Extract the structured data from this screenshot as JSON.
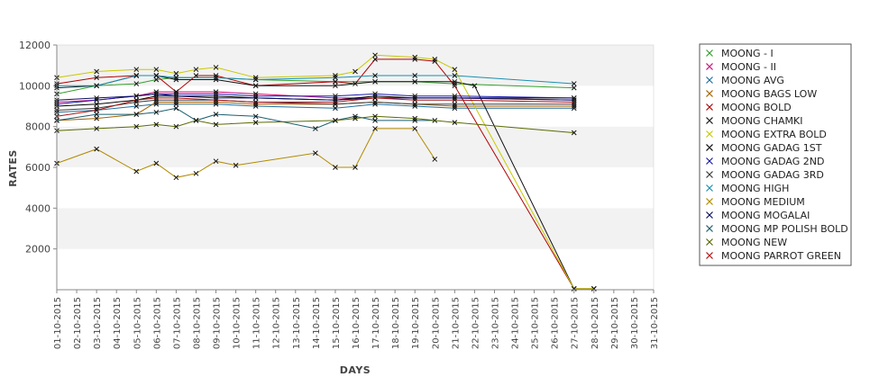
{
  "chart_data": {
    "type": "line",
    "title": "",
    "xlabel": "DAYS",
    "ylabel": "RATES",
    "ylim": [
      0,
      12000
    ],
    "yticks": [
      2000,
      4000,
      6000,
      8000,
      10000,
      12000
    ],
    "grid": true,
    "legend_position": "right",
    "categories": [
      "01-10-2015",
      "02-10-2015",
      "03-10-2015",
      "04-10-2015",
      "05-10-2015",
      "06-10-2015",
      "07-10-2015",
      "08-10-2015",
      "09-10-2015",
      "10-10-2015",
      "11-10-2015",
      "12-10-2015",
      "13-10-2015",
      "14-10-2015",
      "15-10-2015",
      "16-10-2015",
      "17-10-2015",
      "18-10-2015",
      "19-10-2015",
      "20-10-2015",
      "21-10-2015",
      "22-10-2015",
      "23-10-2015",
      "24-10-2015",
      "25-10-2015",
      "26-10-2015",
      "27-10-2015",
      "28-10-2015",
      "29-10-2015",
      "30-10-2015",
      "31-10-2015"
    ],
    "series": [
      {
        "name": "MOONG - I",
        "color": "#33a02c",
        "points": [
          [
            0,
            9600
          ],
          [
            2,
            10000
          ],
          [
            4,
            10100
          ],
          [
            5,
            10300
          ],
          [
            6,
            10400
          ],
          [
            8,
            10400
          ],
          [
            10,
            10300
          ],
          [
            14,
            10200
          ],
          [
            16,
            10200
          ],
          [
            18,
            10200
          ],
          [
            20,
            10100
          ],
          [
            26,
            9900
          ]
        ]
      },
      {
        "name": "MOONG - II",
        "color": "#cc0077",
        "points": [
          [
            0,
            9200
          ],
          [
            2,
            9300
          ],
          [
            4,
            9500
          ],
          [
            5,
            9700
          ],
          [
            6,
            9700
          ],
          [
            8,
            9700
          ],
          [
            10,
            9600
          ],
          [
            14,
            9400
          ],
          [
            16,
            9400
          ],
          [
            18,
            9400
          ],
          [
            20,
            9400
          ],
          [
            26,
            9300
          ]
        ]
      },
      {
        "name": "MOONG AVG",
        "color": "#1f6fa0",
        "points": [
          [
            0,
            8700
          ],
          [
            2,
            8800
          ],
          [
            4,
            9000
          ],
          [
            5,
            9100
          ],
          [
            6,
            9100
          ],
          [
            8,
            9100
          ],
          [
            10,
            9000
          ],
          [
            14,
            8900
          ],
          [
            16,
            9100
          ],
          [
            18,
            9000
          ],
          [
            20,
            8900
          ],
          [
            26,
            8900
          ]
        ]
      },
      {
        "name": "MOONG BAGS LOW",
        "color": "#a06000",
        "points": [
          [
            0,
            8300
          ],
          [
            2,
            8400
          ],
          [
            4,
            8600
          ],
          [
            5,
            9200
          ],
          [
            6,
            9200
          ],
          [
            8,
            9200
          ],
          [
            10,
            9100
          ],
          [
            14,
            9100
          ],
          [
            16,
            9200
          ],
          [
            18,
            9100
          ],
          [
            20,
            9000
          ],
          [
            26,
            9000
          ]
        ]
      },
      {
        "name": "MOONG BOLD",
        "color": "#b00000",
        "points": [
          [
            0,
            10100
          ],
          [
            2,
            10400
          ],
          [
            4,
            10500
          ],
          [
            5,
            10500
          ],
          [
            6,
            9700
          ],
          [
            7,
            10500
          ],
          [
            8,
            10500
          ],
          [
            10,
            10000
          ],
          [
            14,
            10200
          ],
          [
            15,
            10100
          ],
          [
            16,
            11300
          ],
          [
            18,
            11300
          ],
          [
            19,
            11200
          ],
          [
            20,
            10000
          ],
          [
            26,
            50
          ],
          [
            27,
            50
          ]
        ]
      },
      {
        "name": "MOONG CHAMKI",
        "color": "#111111",
        "points": [
          [
            0,
            9900
          ],
          [
            2,
            10000
          ],
          [
            4,
            10500
          ],
          [
            5,
            10500
          ],
          [
            6,
            10300
          ],
          [
            8,
            10300
          ],
          [
            10,
            10000
          ],
          [
            14,
            10000
          ],
          [
            16,
            10200
          ],
          [
            18,
            10200
          ],
          [
            20,
            10200
          ],
          [
            21,
            10000
          ],
          [
            26,
            50
          ],
          [
            27,
            50
          ]
        ]
      },
      {
        "name": "MOONG EXTRA BOLD",
        "color": "#c8c800",
        "points": [
          [
            0,
            10400
          ],
          [
            2,
            10700
          ],
          [
            4,
            10800
          ],
          [
            5,
            10800
          ],
          [
            6,
            10600
          ],
          [
            7,
            10800
          ],
          [
            8,
            10900
          ],
          [
            10,
            10400
          ],
          [
            14,
            10500
          ],
          [
            15,
            10700
          ],
          [
            16,
            11500
          ],
          [
            18,
            11400
          ],
          [
            19,
            11300
          ],
          [
            20,
            10800
          ],
          [
            26,
            50
          ],
          [
            27,
            50
          ]
        ]
      },
      {
        "name": "MOONG GADAG 1ST",
        "color": "#000000",
        "points": [
          [
            0,
            9000
          ],
          [
            2,
            9100
          ],
          [
            4,
            9300
          ],
          [
            5,
            9500
          ],
          [
            6,
            9500
          ],
          [
            8,
            9500
          ],
          [
            10,
            9400
          ],
          [
            14,
            9300
          ],
          [
            16,
            9500
          ],
          [
            18,
            9400
          ],
          [
            20,
            9400
          ],
          [
            26,
            9400
          ]
        ]
      },
      {
        "name": "MOONG GADAG 2ND",
        "color": "#1a1aaa",
        "points": [
          [
            0,
            9100
          ],
          [
            2,
            9300
          ],
          [
            4,
            9500
          ],
          [
            5,
            9600
          ],
          [
            6,
            9600
          ],
          [
            8,
            9600
          ],
          [
            10,
            9500
          ],
          [
            14,
            9500
          ],
          [
            16,
            9600
          ],
          [
            18,
            9500
          ],
          [
            20,
            9500
          ],
          [
            26,
            9400
          ]
        ]
      },
      {
        "name": "MOONG GADAG 3RD",
        "color": "#3a3a3a",
        "points": [
          [
            0,
            8800
          ],
          [
            2,
            8900
          ],
          [
            4,
            9200
          ],
          [
            5,
            9300
          ],
          [
            6,
            9300
          ],
          [
            8,
            9300
          ],
          [
            10,
            9200
          ],
          [
            14,
            9100
          ],
          [
            16,
            9200
          ],
          [
            18,
            9100
          ],
          [
            20,
            9100
          ],
          [
            26,
            9100
          ]
        ]
      },
      {
        "name": "MOONG HIGH",
        "color": "#1a8fb0",
        "points": [
          [
            0,
            10000
          ],
          [
            2,
            10000
          ],
          [
            4,
            10500
          ],
          [
            5,
            10500
          ],
          [
            6,
            10400
          ],
          [
            8,
            10400
          ],
          [
            10,
            10300
          ],
          [
            14,
            10400
          ],
          [
            16,
            10500
          ],
          [
            18,
            10500
          ],
          [
            20,
            10500
          ],
          [
            26,
            10100
          ]
        ]
      },
      {
        "name": "MOONG MEDIUM",
        "color": "#b08a00",
        "points": [
          [
            0,
            6200
          ],
          [
            2,
            6900
          ],
          [
            4,
            5800
          ],
          [
            5,
            6200
          ],
          [
            6,
            5500
          ],
          [
            7,
            5700
          ],
          [
            8,
            6300
          ],
          [
            9,
            6100
          ],
          [
            13,
            6700
          ],
          [
            14,
            6000
          ],
          [
            15,
            6000
          ],
          [
            16,
            7900
          ],
          [
            18,
            7900
          ],
          [
            19,
            6400
          ]
        ]
      },
      {
        "name": "MOONG MOGALAI",
        "color": "#0a1060",
        "points": [
          [
            0,
            9300
          ],
          [
            2,
            9400
          ],
          [
            4,
            9500
          ],
          [
            5,
            9600
          ],
          [
            6,
            9500
          ],
          [
            8,
            9400
          ],
          [
            10,
            9400
          ],
          [
            14,
            9300
          ],
          [
            16,
            9400
          ],
          [
            18,
            9400
          ],
          [
            20,
            9400
          ],
          [
            26,
            9300
          ]
        ]
      },
      {
        "name": "MOONG MP POLISH BOLD",
        "color": "#1a5f6f",
        "points": [
          [
            0,
            8300
          ],
          [
            2,
            8600
          ],
          [
            4,
            8600
          ],
          [
            5,
            8700
          ],
          [
            6,
            8900
          ],
          [
            7,
            8300
          ],
          [
            8,
            8600
          ],
          [
            10,
            8500
          ],
          [
            13,
            7900
          ],
          [
            14,
            8300
          ],
          [
            15,
            8500
          ],
          [
            16,
            8300
          ],
          [
            18,
            8300
          ],
          [
            19,
            8300
          ]
        ]
      },
      {
        "name": "MOONG NEW",
        "color": "#5a6a00",
        "points": [
          [
            0,
            7800
          ],
          [
            2,
            7900
          ],
          [
            4,
            8000
          ],
          [
            5,
            8100
          ],
          [
            6,
            8000
          ],
          [
            7,
            8300
          ],
          [
            8,
            8100
          ],
          [
            10,
            8200
          ],
          [
            14,
            8300
          ],
          [
            15,
            8400
          ],
          [
            16,
            8500
          ],
          [
            18,
            8400
          ],
          [
            20,
            8200
          ],
          [
            26,
            7700
          ]
        ]
      },
      {
        "name": "MOONG PARROT GREEN",
        "color": "#aa1010",
        "points": [
          [
            0,
            8500
          ],
          [
            2,
            8800
          ],
          [
            4,
            9300
          ],
          [
            5,
            9400
          ],
          [
            6,
            9400
          ],
          [
            8,
            9300
          ],
          [
            10,
            9200
          ],
          [
            14,
            9200
          ],
          [
            16,
            9400
          ],
          [
            18,
            9300
          ],
          [
            20,
            9300
          ],
          [
            26,
            9200
          ]
        ]
      }
    ]
  }
}
